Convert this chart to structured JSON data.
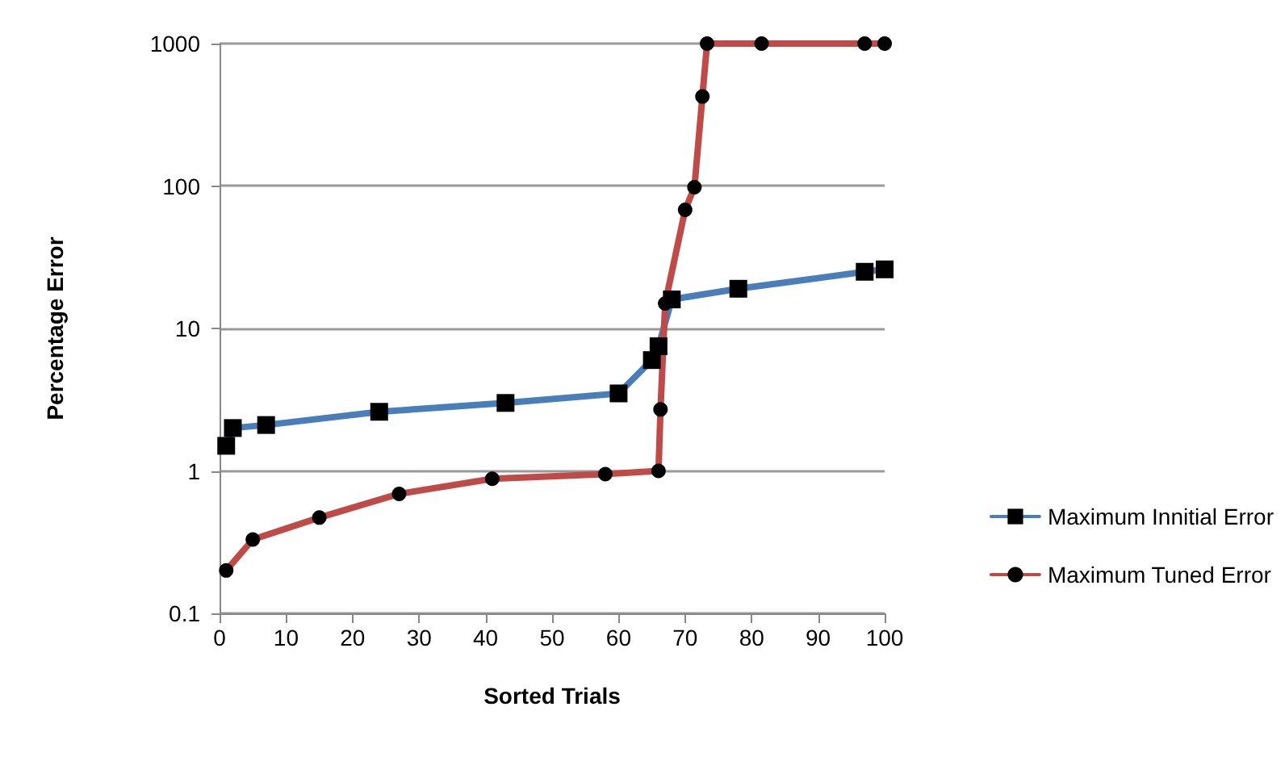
{
  "chart_data": {
    "type": "line",
    "xlabel": "Sorted Trials",
    "ylabel": "Percentage Error",
    "xlim": [
      0,
      100
    ],
    "xticks": [
      0,
      10,
      20,
      30,
      40,
      50,
      60,
      70,
      80,
      90,
      100
    ],
    "ylim": [
      0.1,
      1000
    ],
    "yticks": [
      0.1,
      1,
      10,
      100,
      1000
    ],
    "log": "y",
    "grid": "y",
    "legend": "right",
    "line_style": "solid",
    "series": [
      {
        "name": "Maximum Innitial Error",
        "color": "#4a7ebb",
        "marker": "square",
        "x": [
          1,
          2,
          7,
          24,
          43,
          60,
          65,
          66,
          68,
          78,
          97,
          100
        ],
        "values": [
          1.5,
          2.0,
          2.1,
          2.6,
          3.0,
          3.5,
          6.0,
          7.5,
          16,
          19,
          25,
          26
        ]
      },
      {
        "name": "Maximum Tuned Error",
        "color": "#be4b48",
        "marker": "circle",
        "x": [
          1,
          5,
          15,
          27,
          41,
          58,
          66,
          66.3,
          67,
          70,
          71.4,
          72.6,
          73.3,
          81.5,
          97,
          100
        ],
        "values": [
          0.2,
          0.33,
          0.47,
          0.69,
          0.88,
          0.95,
          1.0,
          2.7,
          15,
          68,
          98,
          425,
          1000,
          1000,
          1000,
          1000
        ]
      }
    ]
  }
}
